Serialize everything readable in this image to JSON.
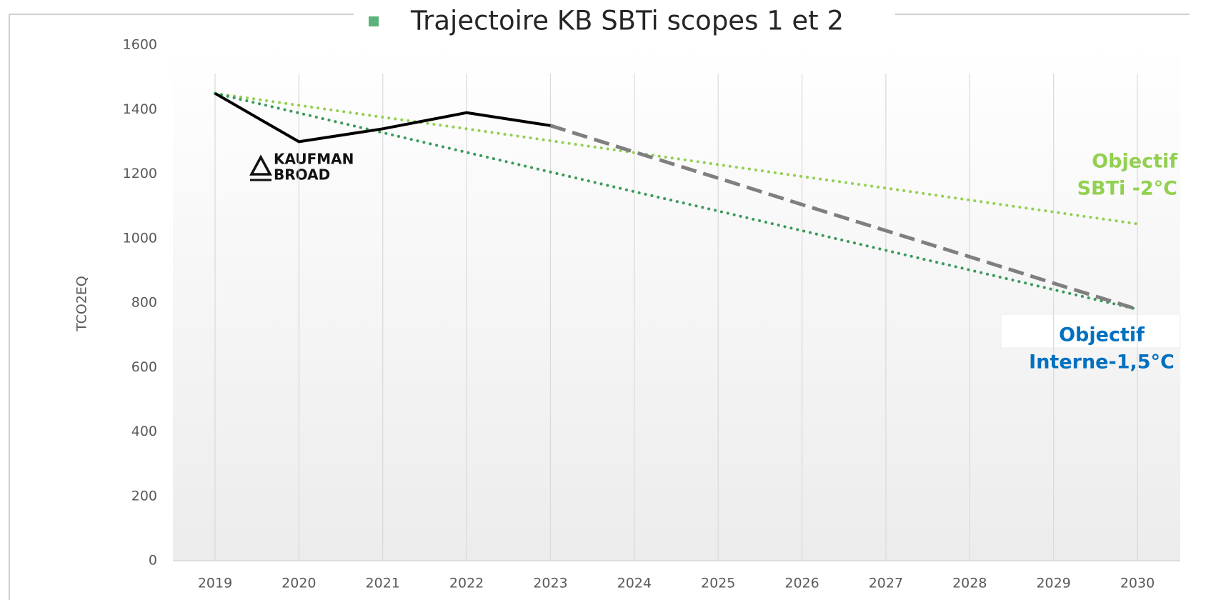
{
  "chart_data": {
    "type": "line",
    "title": "Trajectoire KB SBTi scopes 1 et 2",
    "y_label": "TCO2EQ",
    "logo": [
      "KAUFMAN",
      "BROAD"
    ],
    "categories": [
      "2019",
      "2020",
      "2021",
      "2022",
      "2023",
      "2024",
      "2025",
      "2026",
      "2027",
      "2028",
      "2029",
      "2030"
    ],
    "series": [
      {
        "color": "#000000",
        "style": "solid",
        "values": [
          1450,
          1300,
          1340,
          1390,
          1350,
          null,
          null,
          null,
          null,
          null,
          null,
          null
        ]
      },
      {
        "color": "#7f7f7f",
        "style": "dashed",
        "values": [
          null,
          null,
          null,
          null,
          1350,
          1268,
          1187,
          1105,
          1024,
          943,
          861,
          780
        ]
      },
      {
        "color": "#92d050",
        "style": "dotted",
        "values": [
          1450,
          1413,
          1376,
          1340,
          1303,
          1266,
          1229,
          1192,
          1156,
          1119,
          1082,
          1045
        ]
      },
      {
        "color": "#3a9a5a",
        "style": "dotted",
        "values": [
          1450,
          1389,
          1328,
          1267,
          1206,
          1145,
          1085,
          1024,
          963,
          902,
          841,
          780
        ]
      }
    ],
    "annotations": [
      {
        "lines": [
          "Objectif",
          "SBTi -2°C"
        ],
        "color": "#92d050"
      },
      {
        "lines": [
          "Objectif",
          "Interne-1,5°C"
        ],
        "color": "#0070c0"
      }
    ],
    "ylim": [
      0,
      1600
    ],
    "yticks": [
      0,
      200,
      400,
      600,
      800,
      1000,
      1200,
      1400,
      1600
    ],
    "xgrid": true
  }
}
